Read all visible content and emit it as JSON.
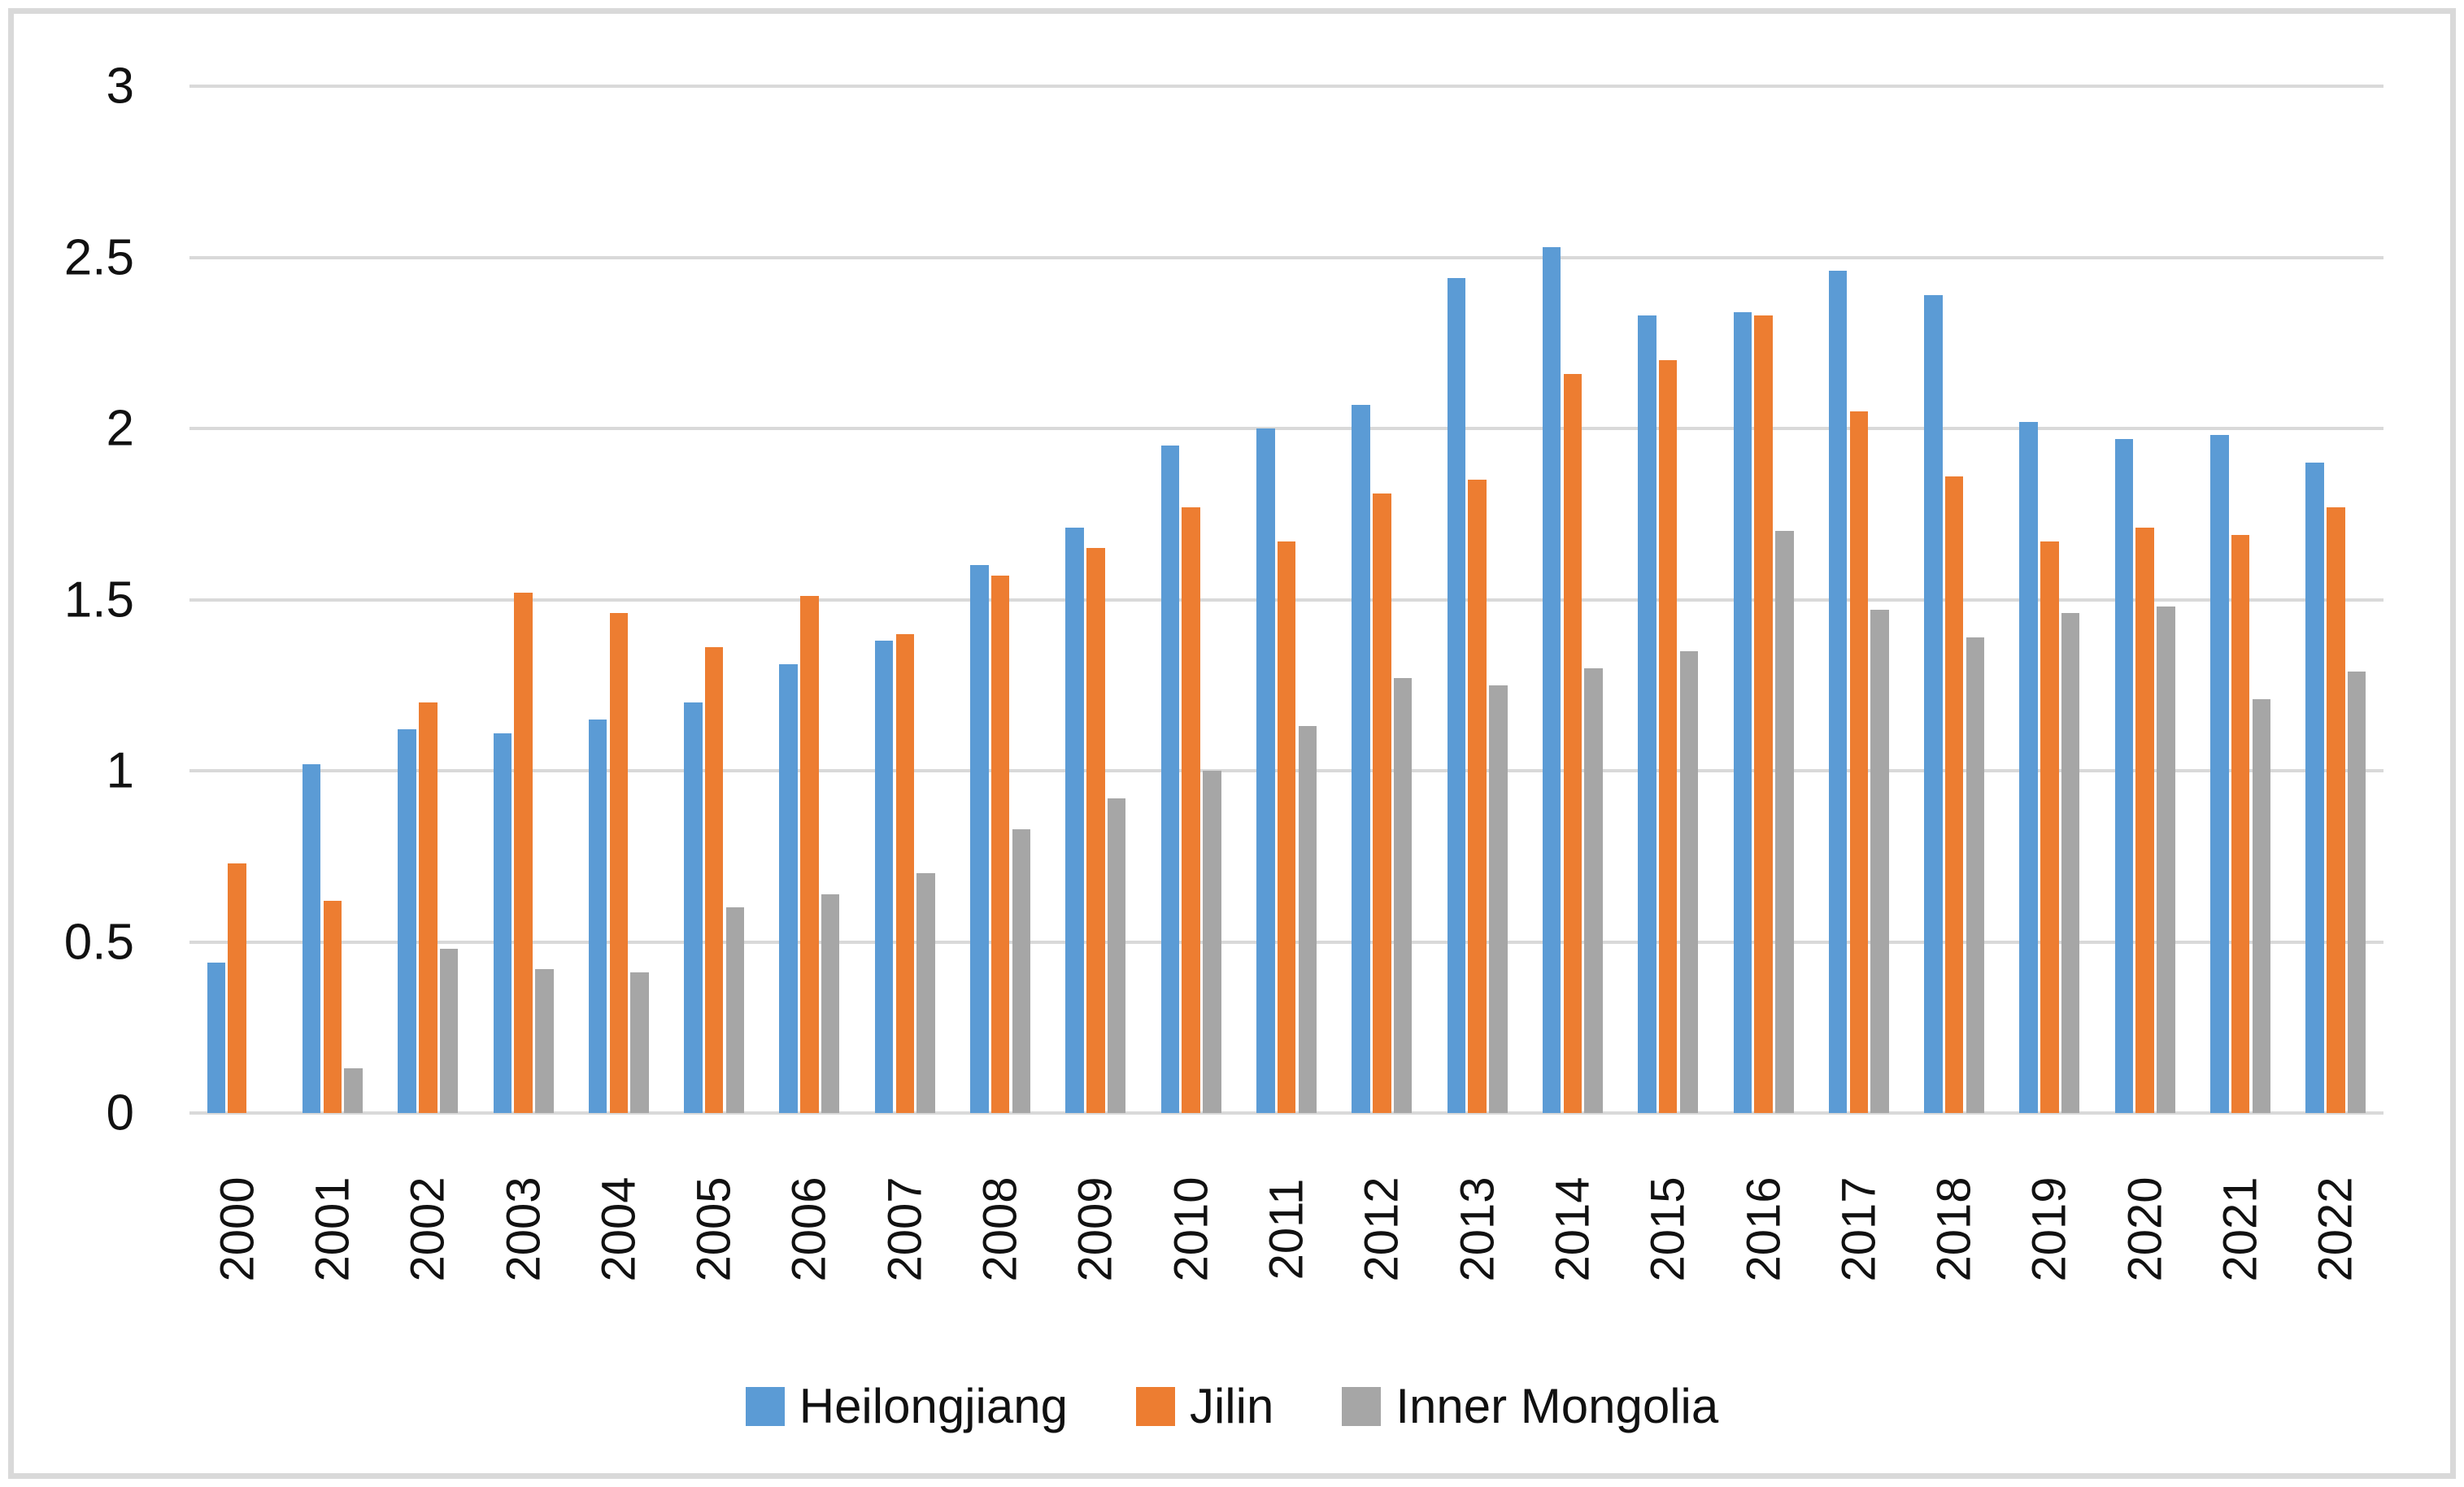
{
  "chart_data": {
    "type": "bar",
    "title": "",
    "xlabel": "",
    "ylabel": "",
    "categories": [
      "2000",
      "2001",
      "2002",
      "2003",
      "2004",
      "2005",
      "2006",
      "2007",
      "2008",
      "2009",
      "2010",
      "2011",
      "2012",
      "2013",
      "2014",
      "2015",
      "2016",
      "2017",
      "2018",
      "2019",
      "2020",
      "2021",
      "2022"
    ],
    "series": [
      {
        "name": "Heilongjiang",
        "color": "#5B9BD5",
        "values": [
          0.44,
          1.02,
          1.12,
          1.11,
          1.15,
          1.2,
          1.31,
          1.38,
          1.6,
          1.71,
          1.95,
          2.0,
          2.07,
          2.44,
          2.53,
          2.33,
          2.34,
          2.46,
          2.39,
          2.02,
          1.97,
          1.98,
          1.9
        ]
      },
      {
        "name": "Jilin",
        "color": "#ED7D31",
        "values": [
          0.73,
          0.62,
          1.2,
          1.52,
          1.46,
          1.36,
          1.51,
          1.4,
          1.57,
          1.65,
          1.77,
          1.67,
          1.81,
          1.85,
          2.16,
          2.2,
          2.33,
          2.05,
          1.86,
          1.67,
          1.71,
          1.69,
          1.77
        ]
      },
      {
        "name": "Inner Mongolia",
        "color": "#A6A6A6",
        "values": [
          0,
          0.13,
          0.48,
          0.42,
          0.41,
          0.6,
          0.64,
          0.7,
          0.83,
          0.92,
          1.0,
          1.13,
          1.27,
          1.25,
          1.3,
          1.35,
          1.7,
          1.47,
          1.39,
          1.46,
          1.48,
          1.21,
          1.29
        ]
      }
    ],
    "ylim": [
      0,
      3
    ],
    "ytick_step": 0.5,
    "yticks": [
      "0",
      "0.5",
      "1",
      "1.5",
      "2",
      "2.5",
      "3"
    ],
    "grid": true,
    "legend_position": "bottom"
  },
  "frame_color": "#D9D9D9",
  "gridline_color": "#D9D9D9",
  "text_color": "#111111"
}
